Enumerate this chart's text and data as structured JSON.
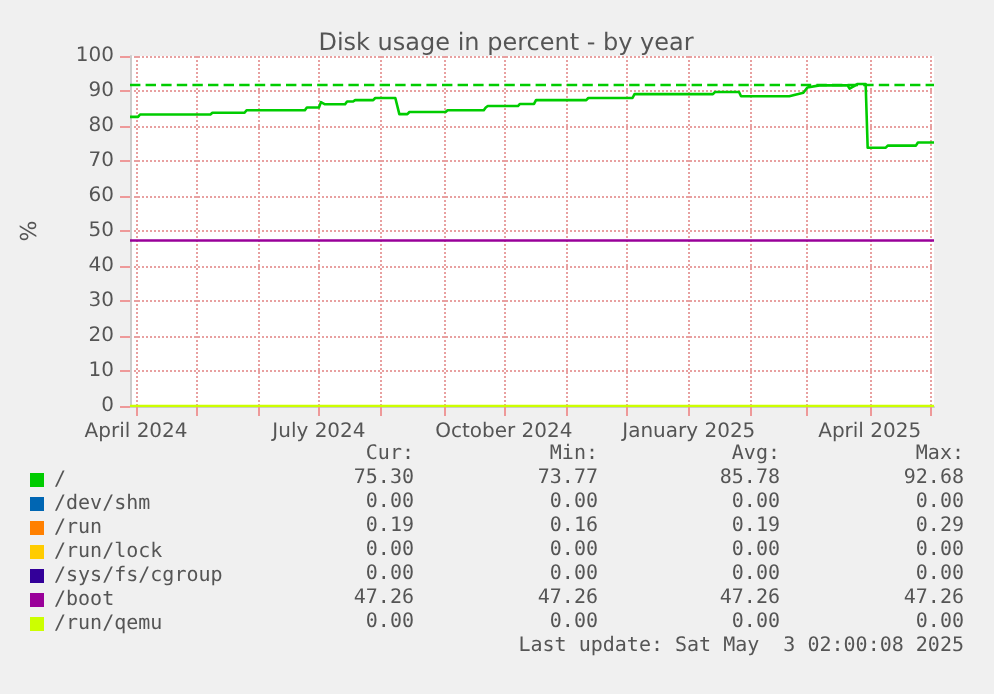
{
  "chart_data": {
    "type": "line",
    "title": "Disk usage in percent - by year",
    "ylabel": "%",
    "xlim": [
      "2024-03-29",
      "2025-05-03"
    ],
    "xticks": [
      {
        "value": "2024-04-01",
        "label": "April 2024"
      },
      {
        "value": "2024-05-01",
        "label": null
      },
      {
        "value": "2024-06-01",
        "label": null
      },
      {
        "value": "2024-07-01",
        "label": "July 2024"
      },
      {
        "value": "2024-08-01",
        "label": null
      },
      {
        "value": "2024-09-01",
        "label": null
      },
      {
        "value": "2024-10-01",
        "label": "October 2024"
      },
      {
        "value": "2024-11-01",
        "label": null
      },
      {
        "value": "2024-12-01",
        "label": null
      },
      {
        "value": "2025-01-01",
        "label": "January 2025"
      },
      {
        "value": "2025-02-01",
        "label": null
      },
      {
        "value": "2025-03-01",
        "label": null
      },
      {
        "value": "2025-04-01",
        "label": "April 2025"
      },
      {
        "value": "2025-05-01",
        "label": null
      }
    ],
    "ylim": [
      0,
      100
    ],
    "yticks": [
      0,
      10,
      20,
      30,
      40,
      50,
      60,
      70,
      80,
      90,
      100
    ],
    "grid": true,
    "legend": "bottom",
    "marker": "none",
    "line_style": "solid",
    "series": [
      {
        "name": "/",
        "color": "#00cc00",
        "x": [
          "2024-03-29",
          "2024-04-02",
          "2024-04-03",
          "2024-05-08",
          "2024-05-09",
          "2024-05-25",
          "2024-05-26",
          "2024-06-24",
          "2024-06-25",
          "2024-07-01",
          "2024-07-02",
          "2024-07-04",
          "2024-07-14",
          "2024-07-15",
          "2024-07-18",
          "2024-07-19",
          "2024-07-28",
          "2024-07-29",
          "2024-08-08",
          "2024-08-10",
          "2024-08-14",
          "2024-08-15",
          "2024-09-02",
          "2024-09-03",
          "2024-09-21",
          "2024-09-22",
          "2024-09-23",
          "2024-10-08",
          "2024-10-09",
          "2024-10-16",
          "2024-10-17",
          "2024-11-11",
          "2024-11-12",
          "2024-12-04",
          "2024-12-05",
          "2025-01-13",
          "2025-01-14",
          "2025-01-26",
          "2025-01-27",
          "2025-02-20",
          "2025-02-27",
          "2025-03-01",
          "2025-03-07",
          "2025-03-21",
          "2025-03-22",
          "2025-03-26",
          "2025-03-30",
          "2025-03-31",
          "2025-04-09",
          "2025-04-10",
          "2025-04-24",
          "2025-04-25",
          "2025-05-03"
        ],
        "values": [
          82.6,
          82.6,
          83.3,
          83.3,
          83.8,
          83.8,
          84.5,
          84.5,
          85.3,
          85.3,
          86.8,
          86.2,
          86.2,
          87.0,
          87.0,
          87.4,
          87.4,
          88.0,
          88.0,
          83.4,
          83.4,
          84.0,
          84.0,
          84.5,
          84.5,
          85.3,
          85.7,
          85.7,
          86.3,
          86.3,
          87.4,
          87.4,
          88.0,
          88.0,
          89.1,
          89.1,
          89.7,
          89.7,
          88.5,
          88.5,
          89.5,
          91.0,
          91.6,
          91.6,
          90.7,
          92.0,
          92.0,
          73.8,
          73.8,
          74.4,
          74.4,
          75.3,
          75.3
        ]
      },
      {
        "name": "/dev/shm",
        "color": "#0066b3"
      },
      {
        "name": "/run",
        "color": "#ff8000"
      },
      {
        "name": "/run/lock",
        "color": "#ffcc00"
      },
      {
        "name": "/sys/fs/cgroup",
        "color": "#330099"
      },
      {
        "name": "/boot",
        "color": "#990099",
        "x": [
          "2024-03-29",
          "2025-05-03"
        ],
        "values": [
          47.3,
          47.3
        ]
      },
      {
        "name": "/run/qemu",
        "color": "#ccff00",
        "x": [
          "2024-03-29",
          "2025-05-03"
        ],
        "values": [
          0,
          0
        ]
      }
    ],
    "ref_lines": [
      {
        "axis": "y",
        "value": 92,
        "color": "#00cc00",
        "line_style": "dashed"
      }
    ],
    "annotations": [
      "Cur:",
      "Min:",
      "Avg:",
      "Max:",
      "75.30",
      "73.77",
      "85.78",
      "92.68",
      "0.00",
      "0.00",
      "0.00",
      "0.00",
      "0.19",
      "0.16",
      "0.19",
      "0.29",
      "0.00",
      "0.00",
      "0.00",
      "0.00",
      "0.00",
      "0.00",
      "0.00",
      "0.00",
      "47.26",
      "47.26",
      "47.26",
      "47.26",
      "0.00",
      "0.00",
      "0.00",
      "0.00",
      "Last update: Sat May  3 02:00:08 2025"
    ]
  }
}
